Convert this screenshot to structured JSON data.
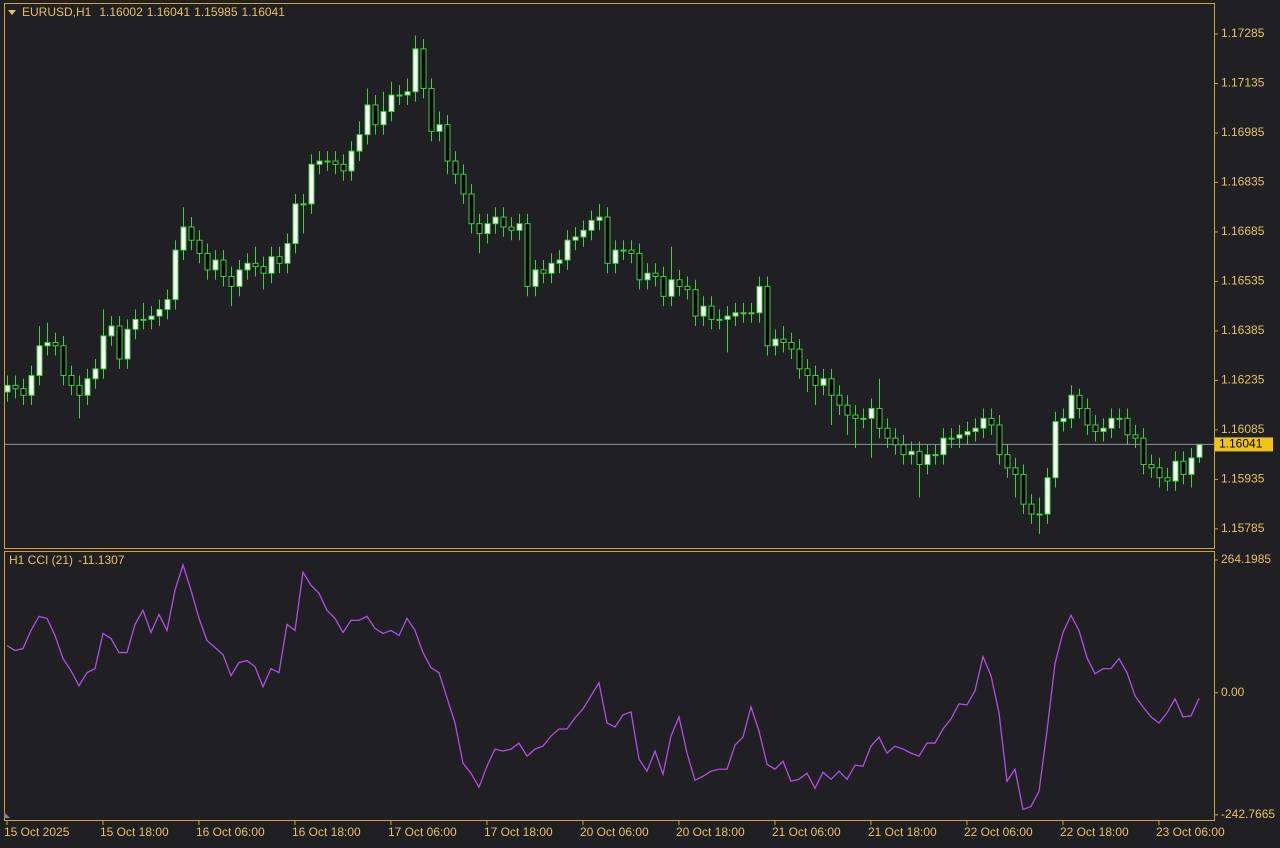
{
  "chart_data": [
    {
      "type": "candlestick",
      "title": "EURUSD,H1",
      "header_values": [
        1.16002,
        1.16041,
        1.15985,
        1.16041
      ],
      "current_price": 1.16041,
      "ylim": [
        1.15727,
        1.17379
      ],
      "yticks": [
        1.17285,
        1.17135,
        1.16985,
        1.16835,
        1.16685,
        1.16535,
        1.16385,
        1.16235,
        1.16085,
        1.15935,
        1.15785
      ],
      "up_color": "#ffffff",
      "down_color": "#000000",
      "wick_color": "#3fd13f",
      "price_line_color": "#8795a0",
      "tag_color": "#f0c419",
      "open": [
        1.162,
        1.1622,
        1.1621,
        1.1619,
        1.1625,
        1.1634,
        1.1635,
        1.1634,
        1.1625,
        1.1622,
        1.1619,
        1.1624,
        1.1627,
        1.1637,
        1.164,
        1.163,
        1.1639,
        1.1642,
        1.1642,
        1.1643,
        1.1645,
        1.1648,
        1.1663,
        1.167,
        1.1666,
        1.1662,
        1.1657,
        1.166,
        1.1655,
        1.1652,
        1.1657,
        1.1659,
        1.1658,
        1.1656,
        1.1661,
        1.1659,
        1.1665,
        1.1677,
        1.1677,
        1.1689,
        1.169,
        1.169,
        1.1689,
        1.1687,
        1.1693,
        1.1698,
        1.1707,
        1.1701,
        1.1705,
        1.171,
        1.171,
        1.1711,
        1.1724,
        1.1712,
        1.1699,
        1.1701,
        1.169,
        1.1686,
        1.168,
        1.1671,
        1.1668,
        1.1671,
        1.1673,
        1.167,
        1.1669,
        1.1671,
        1.1652,
        1.1657,
        1.1656,
        1.1659,
        1.166,
        1.1666,
        1.1667,
        1.1669,
        1.1672,
        1.1673,
        1.1659,
        1.1663,
        1.1663,
        1.1662,
        1.1654,
        1.1656,
        1.1655,
        1.1649,
        1.1654,
        1.1652,
        1.1651,
        1.1643,
        1.1646,
        1.1642,
        1.1642,
        1.1643,
        1.1644,
        1.1644,
        1.1644,
        1.1652,
        1.1634,
        1.1636,
        1.1635,
        1.1633,
        1.1627,
        1.1625,
        1.1622,
        1.1624,
        1.1619,
        1.1616,
        1.1613,
        1.1612,
        1.1612,
        1.1615,
        1.1609,
        1.1606,
        1.1604,
        1.1601,
        1.1602,
        1.1598,
        1.1601,
        1.1601,
        1.1606,
        1.1606,
        1.1607,
        1.1608,
        1.1609,
        1.1612,
        1.161,
        1.1601,
        1.1597,
        1.1595,
        1.1586,
        1.1583,
        1.1583,
        1.1594,
        1.1611,
        1.1612,
        1.1619,
        1.1615,
        1.161,
        1.1608,
        1.1609,
        1.1612,
        1.1612,
        1.1607,
        1.1606,
        1.1598,
        1.1597,
        1.1594,
        1.1593,
        1.1599,
        1.1595,
        1.16002
      ],
      "high": [
        1.1625,
        1.1625,
        1.1624,
        1.1628,
        1.164,
        1.1641,
        1.1638,
        1.1637,
        1.1628,
        1.1625,
        1.1627,
        1.163,
        1.1645,
        1.1643,
        1.1643,
        1.1642,
        1.1645,
        1.1647,
        1.1646,
        1.1648,
        1.1651,
        1.1666,
        1.1676,
        1.1673,
        1.1669,
        1.1665,
        1.1663,
        1.1663,
        1.1658,
        1.166,
        1.1662,
        1.1664,
        1.1661,
        1.1664,
        1.1664,
        1.1668,
        1.168,
        1.168,
        1.1692,
        1.1693,
        1.1693,
        1.1693,
        1.1692,
        1.1696,
        1.1702,
        1.1712,
        1.171,
        1.1711,
        1.1714,
        1.1713,
        1.1715,
        1.1728,
        1.1727,
        1.1715,
        1.1705,
        1.1704,
        1.1693,
        1.1689,
        1.1683,
        1.1674,
        1.1674,
        1.1676,
        1.1676,
        1.1673,
        1.1674,
        1.1674,
        1.166,
        1.166,
        1.1662,
        1.1663,
        1.1669,
        1.167,
        1.1672,
        1.1675,
        1.1677,
        1.1676,
        1.1666,
        1.1666,
        1.1666,
        1.1665,
        1.1659,
        1.1659,
        1.1658,
        1.1664,
        1.1657,
        1.1655,
        1.1654,
        1.1649,
        1.1649,
        1.1645,
        1.1646,
        1.1647,
        1.1647,
        1.1647,
        1.1655,
        1.1655,
        1.1639,
        1.164,
        1.1638,
        1.1636,
        1.163,
        1.1628,
        1.1627,
        1.1627,
        1.1622,
        1.1619,
        1.1616,
        1.1615,
        1.1618,
        1.1624,
        1.1612,
        1.1609,
        1.1607,
        1.1605,
        1.1605,
        1.1604,
        1.1604,
        1.1609,
        1.1609,
        1.161,
        1.1611,
        1.1612,
        1.1615,
        1.1615,
        1.1613,
        1.1604,
        1.16,
        1.1598,
        1.1589,
        1.1588,
        1.1597,
        1.1614,
        1.1615,
        1.1622,
        1.1621,
        1.1618,
        1.1613,
        1.1612,
        1.1615,
        1.1615,
        1.1615,
        1.161,
        1.1609,
        1.1601,
        1.16,
        1.1597,
        1.1602,
        1.1602,
        1.1603,
        1.16041
      ],
      "low": [
        1.1617,
        1.1618,
        1.1616,
        1.1616,
        1.1622,
        1.1631,
        1.1631,
        1.1622,
        1.1619,
        1.1612,
        1.1616,
        1.1621,
        1.1624,
        1.1634,
        1.1627,
        1.1627,
        1.1636,
        1.1639,
        1.1639,
        1.164,
        1.1642,
        1.1645,
        1.166,
        1.1663,
        1.1659,
        1.1654,
        1.1654,
        1.1652,
        1.1646,
        1.1649,
        1.1654,
        1.1655,
        1.1651,
        1.1653,
        1.1656,
        1.1656,
        1.1662,
        1.1668,
        1.1674,
        1.1686,
        1.1687,
        1.1686,
        1.1684,
        1.1684,
        1.169,
        1.1695,
        1.1698,
        1.1698,
        1.1702,
        1.1707,
        1.1707,
        1.1708,
        1.1709,
        1.1696,
        1.1696,
        1.1686,
        1.1683,
        1.1677,
        1.1668,
        1.1662,
        1.1665,
        1.1668,
        1.1667,
        1.1666,
        1.1666,
        1.1649,
        1.1649,
        1.1653,
        1.1653,
        1.1656,
        1.1657,
        1.1663,
        1.1664,
        1.1666,
        1.1669,
        1.1656,
        1.1656,
        1.166,
        1.1659,
        1.1651,
        1.1651,
        1.1652,
        1.1646,
        1.1646,
        1.1649,
        1.1648,
        1.164,
        1.164,
        1.1639,
        1.1639,
        1.1632,
        1.164,
        1.1641,
        1.1641,
        1.1641,
        1.1631,
        1.1631,
        1.1632,
        1.163,
        1.1624,
        1.162,
        1.1616,
        1.1619,
        1.161,
        1.1613,
        1.1607,
        1.1603,
        1.1609,
        1.16,
        1.1606,
        1.1603,
        1.1601,
        1.1598,
        1.1598,
        1.1588,
        1.1595,
        1.1598,
        1.1598,
        1.1603,
        1.1603,
        1.1604,
        1.1605,
        1.1606,
        1.1607,
        1.1598,
        1.1594,
        1.1588,
        1.1583,
        1.158,
        1.1577,
        1.158,
        1.1591,
        1.1608,
        1.1609,
        1.1612,
        1.1607,
        1.1605,
        1.1605,
        1.1606,
        1.1609,
        1.1604,
        1.1603,
        1.1595,
        1.1594,
        1.1591,
        1.159,
        1.159,
        1.1592,
        1.1591,
        1.15985
      ],
      "close": [
        1.1622,
        1.1621,
        1.1619,
        1.1625,
        1.1634,
        1.1635,
        1.1634,
        1.1625,
        1.1622,
        1.1619,
        1.1624,
        1.1627,
        1.1637,
        1.164,
        1.163,
        1.1639,
        1.1642,
        1.1642,
        1.1643,
        1.1645,
        1.1648,
        1.1663,
        1.167,
        1.1666,
        1.1662,
        1.1657,
        1.166,
        1.1655,
        1.1652,
        1.1657,
        1.1659,
        1.1658,
        1.1656,
        1.1661,
        1.1659,
        1.1665,
        1.1677,
        1.1677,
        1.1689,
        1.169,
        1.169,
        1.1689,
        1.1687,
        1.1693,
        1.1698,
        1.1707,
        1.1701,
        1.1705,
        1.171,
        1.171,
        1.1711,
        1.1724,
        1.1712,
        1.1699,
        1.1701,
        1.169,
        1.1686,
        1.168,
        1.1671,
        1.1668,
        1.1671,
        1.1673,
        1.167,
        1.1669,
        1.1671,
        1.1652,
        1.1657,
        1.1656,
        1.1659,
        1.166,
        1.1666,
        1.1667,
        1.1669,
        1.1672,
        1.1673,
        1.1659,
        1.1663,
        1.1663,
        1.1662,
        1.1654,
        1.1656,
        1.1655,
        1.1649,
        1.1654,
        1.1652,
        1.1651,
        1.1643,
        1.1646,
        1.1642,
        1.1642,
        1.1643,
        1.1644,
        1.1644,
        1.1644,
        1.1652,
        1.1634,
        1.1636,
        1.1635,
        1.1633,
        1.1627,
        1.1625,
        1.1622,
        1.1624,
        1.1619,
        1.1616,
        1.1613,
        1.1612,
        1.1612,
        1.1615,
        1.1609,
        1.1606,
        1.1604,
        1.1601,
        1.1602,
        1.1598,
        1.1601,
        1.1601,
        1.1606,
        1.1606,
        1.1607,
        1.1608,
        1.1609,
        1.1612,
        1.161,
        1.1601,
        1.1597,
        1.1595,
        1.1586,
        1.1583,
        1.1583,
        1.1594,
        1.1611,
        1.1612,
        1.1619,
        1.1615,
        1.161,
        1.1608,
        1.1609,
        1.1612,
        1.1612,
        1.1607,
        1.1606,
        1.1598,
        1.1597,
        1.1594,
        1.1593,
        1.1599,
        1.1595,
        1.16,
        1.16041
      ]
    },
    {
      "type": "line",
      "title": "H1 CCI (21)",
      "last_value": -11.1307,
      "color": "#b04fe0",
      "ylim": [
        -253,
        282
      ],
      "yticks": [
        264.1985,
        {
          "value": 0,
          "label": "0.00"
        },
        -242.7665
      ],
      "categories": [
        "15 Oct 2025",
        null,
        null,
        null,
        null,
        null,
        null,
        null,
        null,
        null,
        null,
        null,
        "15 Oct 18:00",
        null,
        null,
        null,
        null,
        null,
        null,
        null,
        null,
        null,
        null,
        null,
        "16 Oct 06:00",
        null,
        null,
        null,
        null,
        null,
        null,
        null,
        null,
        null,
        null,
        null,
        "16 Oct 18:00",
        null,
        null,
        null,
        null,
        null,
        null,
        null,
        null,
        null,
        null,
        null,
        "17 Oct 06:00",
        null,
        null,
        null,
        null,
        null,
        null,
        null,
        null,
        null,
        null,
        null,
        "17 Oct 18:00",
        null,
        null,
        null,
        null,
        null,
        null,
        null,
        null,
        null,
        null,
        null,
        "20 Oct 06:00",
        null,
        null,
        null,
        null,
        null,
        null,
        null,
        null,
        null,
        null,
        null,
        "20 Oct 18:00",
        null,
        null,
        null,
        null,
        null,
        null,
        null,
        null,
        null,
        null,
        null,
        "21 Oct 06:00",
        null,
        null,
        null,
        null,
        null,
        null,
        null,
        null,
        null,
        null,
        null,
        "21 Oct 18:00",
        null,
        null,
        null,
        null,
        null,
        null,
        null,
        null,
        null,
        null,
        null,
        "22 Oct 06:00",
        null,
        null,
        null,
        null,
        null,
        null,
        null,
        null,
        null,
        null,
        null,
        "22 Oct 18:00",
        null,
        null,
        null,
        null,
        null,
        null,
        null,
        null,
        null,
        null,
        null,
        "23 Oct 06:00",
        null,
        null,
        null,
        null,
        null
      ],
      "values": [
        94,
        84,
        88,
        124,
        152,
        148,
        114,
        68,
        44,
        14,
        40,
        48,
        118,
        108,
        80,
        80,
        136,
        164,
        120,
        156,
        124,
        204,
        254,
        204,
        148,
        104,
        90,
        76,
        34,
        60,
        64,
        52,
        12,
        48,
        40,
        136,
        124,
        240,
        214,
        198,
        164,
        148,
        120,
        144,
        144,
        152,
        128,
        118,
        124,
        114,
        148,
        124,
        80,
        50,
        40,
        -10,
        -60,
        -140,
        -160,
        -188,
        -146,
        -112,
        -116,
        -112,
        -100,
        -126,
        -112,
        -106,
        -86,
        -72,
        -72,
        -50,
        -32,
        -6,
        20,
        -60,
        -68,
        -44,
        -38,
        -132,
        -156,
        -116,
        -162,
        -86,
        -48,
        -120,
        -174,
        -166,
        -156,
        -152,
        -152,
        -104,
        -88,
        -28,
        -76,
        -142,
        -152,
        -136,
        -176,
        -172,
        -160,
        -190,
        -158,
        -172,
        -156,
        -172,
        -144,
        -146,
        -106,
        -88,
        -120,
        -106,
        -112,
        -120,
        -126,
        -100,
        -100,
        -72,
        -52,
        -22,
        -24,
        4,
        72,
        34,
        -40,
        -176,
        -152,
        -232,
        -226,
        -196,
        -76,
        58,
        120,
        154,
        124,
        70,
        38,
        48,
        48,
        68,
        40,
        -6,
        -28,
        -48,
        -60,
        -40,
        -12,
        -48,
        -46,
        -11.1307
      ]
    }
  ]
}
